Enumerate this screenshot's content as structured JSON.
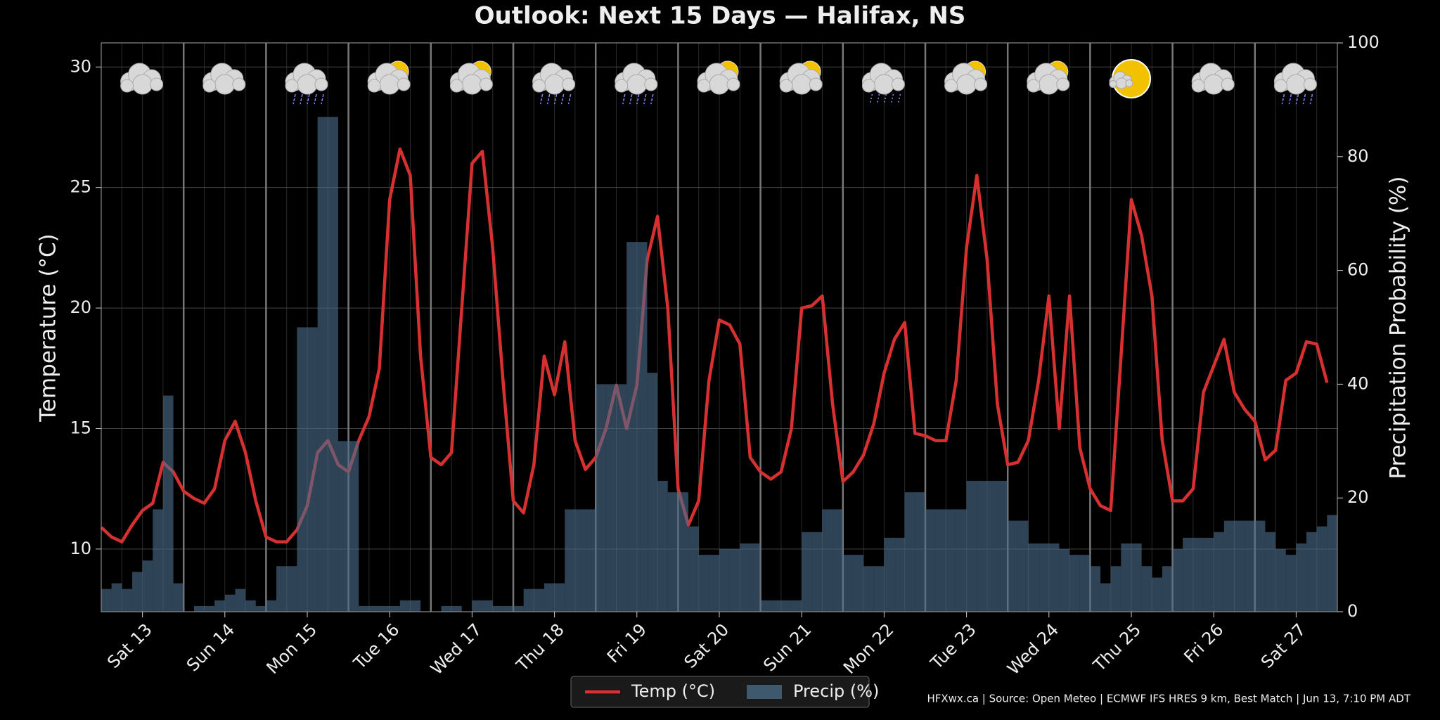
{
  "chart_data": {
    "type": "line-bar",
    "title": "Outlook: Next 15 Days — Halifax, NS",
    "ylabel": "Temperature (°C)",
    "y2label": "Precipitation Probability (%)",
    "source": "HFXwx.ca | Source: Open Meteo | ECMWF IFS HRES 9 km, Best Match | Jun 13, 7:10 PM ADT",
    "xlim": [
      0,
      360
    ],
    "xticks": [
      {
        "value": 12,
        "label": "Sat 13"
      },
      {
        "value": 36,
        "label": "Sun 14"
      },
      {
        "value": 60,
        "label": "Mon 15"
      },
      {
        "value": 84,
        "label": "Tue 16"
      },
      {
        "value": 108,
        "label": "Wed 17"
      },
      {
        "value": 132,
        "label": "Thu 18"
      },
      {
        "value": 156,
        "label": "Fri 19"
      },
      {
        "value": 180,
        "label": "Sat 20"
      },
      {
        "value": 204,
        "label": "Sun 21"
      },
      {
        "value": 228,
        "label": "Mon 22"
      },
      {
        "value": 252,
        "label": "Tue 23"
      },
      {
        "value": 276,
        "label": "Wed 24"
      },
      {
        "value": 300,
        "label": "Thu 25"
      },
      {
        "value": 324,
        "label": "Fri 26"
      },
      {
        "value": 348,
        "label": "Sat 27"
      }
    ],
    "ylim": [
      7.4,
      31
    ],
    "yticks": [
      10,
      15,
      20,
      25,
      30
    ],
    "y2lim": [
      0,
      100
    ],
    "y2ticks": [
      0,
      20,
      40,
      60,
      80,
      100
    ],
    "grid": true,
    "legend": "bottom",
    "x": [
      0,
      3,
      6,
      9,
      12,
      15,
      18,
      21,
      24,
      27,
      30,
      33,
      36,
      39,
      42,
      45,
      48,
      51,
      54,
      57,
      60,
      63,
      66,
      69,
      72,
      75,
      78,
      81,
      84,
      87,
      90,
      93,
      96,
      99,
      102,
      105,
      108,
      111,
      114,
      117,
      120,
      123,
      126,
      129,
      132,
      135,
      138,
      141,
      144,
      147,
      150,
      153,
      156,
      159,
      162,
      165,
      168,
      171,
      174,
      177,
      180,
      183,
      186,
      189,
      192,
      195,
      198,
      201,
      204,
      207,
      210,
      213,
      216,
      219,
      222,
      225,
      228,
      231,
      234,
      237,
      240,
      243,
      246,
      249,
      252,
      255,
      258,
      261,
      264,
      267,
      270,
      273,
      276,
      279,
      282,
      285,
      288,
      291,
      294,
      297,
      300,
      303,
      306,
      309,
      312,
      315,
      318,
      321,
      324,
      327,
      330,
      333,
      336,
      339,
      342,
      345,
      348,
      351,
      354,
      357
    ],
    "series": [
      {
        "name": "Temp (°C)",
        "color": "#d63030",
        "type": "line",
        "axis": "y",
        "values": [
          10.9,
          10.5,
          10.3,
          11.0,
          11.6,
          11.9,
          13.6,
          13.2,
          12.4,
          12.1,
          11.9,
          12.5,
          14.5,
          15.3,
          14.0,
          12.0,
          10.5,
          10.3,
          10.3,
          10.8,
          11.8,
          14.0,
          14.5,
          13.5,
          13.2,
          14.5,
          15.5,
          17.5,
          24.5,
          26.6,
          25.5,
          18.0,
          13.8,
          13.5,
          14.0,
          20.0,
          26.0,
          26.5,
          22.5,
          17.0,
          12.0,
          11.5,
          13.5,
          18.0,
          16.4,
          18.6,
          14.5,
          13.3,
          13.8,
          15.0,
          16.8,
          15.0,
          16.8,
          22.0,
          23.8,
          20.0,
          12.5,
          11.0,
          12.0,
          17.0,
          19.5,
          19.3,
          18.5,
          13.8,
          13.2,
          12.9,
          13.2,
          15.0,
          20.0,
          20.1,
          20.5,
          16.0,
          12.8,
          13.2,
          13.9,
          15.2,
          17.3,
          18.7,
          19.4,
          14.8,
          14.7,
          14.5,
          14.5,
          17.0,
          22.5,
          25.5,
          22.0,
          16.0,
          13.5,
          13.6,
          14.5,
          17.0,
          20.5,
          15.0,
          20.5,
          14.2,
          12.5,
          11.8,
          11.6,
          18.0,
          24.5,
          23.0,
          20.5,
          14.5,
          12.0,
          12.0,
          12.5,
          16.5,
          17.6,
          18.7,
          16.5,
          15.8,
          15.3,
          13.7,
          14.1,
          17.0,
          17.3,
          18.6,
          18.5,
          16.9
        ]
      },
      {
        "name": "Precip (%)",
        "color": "#4b6d8a",
        "type": "bar",
        "axis": "y2",
        "values": [
          4,
          5,
          4,
          7,
          9,
          18,
          38,
          5,
          0,
          1,
          1,
          2,
          3,
          4,
          2,
          1,
          2,
          8,
          8,
          50,
          50,
          87,
          87,
          30,
          30,
          1,
          1,
          1,
          1,
          2,
          2,
          0,
          0,
          1,
          1,
          0,
          2,
          2,
          1,
          1,
          1,
          4,
          4,
          5,
          5,
          18,
          18,
          18,
          40,
          40,
          40,
          65,
          65,
          42,
          23,
          21,
          21,
          15,
          10,
          10,
          11,
          11,
          12,
          12,
          2,
          2,
          2,
          2,
          14,
          14,
          18,
          18,
          10,
          10,
          8,
          8,
          13,
          13,
          21,
          21,
          18,
          18,
          18,
          18,
          23,
          23,
          23,
          23,
          16,
          16,
          12,
          12,
          12,
          11,
          10,
          10,
          8,
          5,
          8,
          12,
          12,
          8,
          6,
          8,
          11,
          13,
          13,
          13,
          14,
          16,
          16,
          16,
          16,
          14,
          11,
          10,
          12,
          14,
          15,
          17
        ]
      }
    ]
  }
}
